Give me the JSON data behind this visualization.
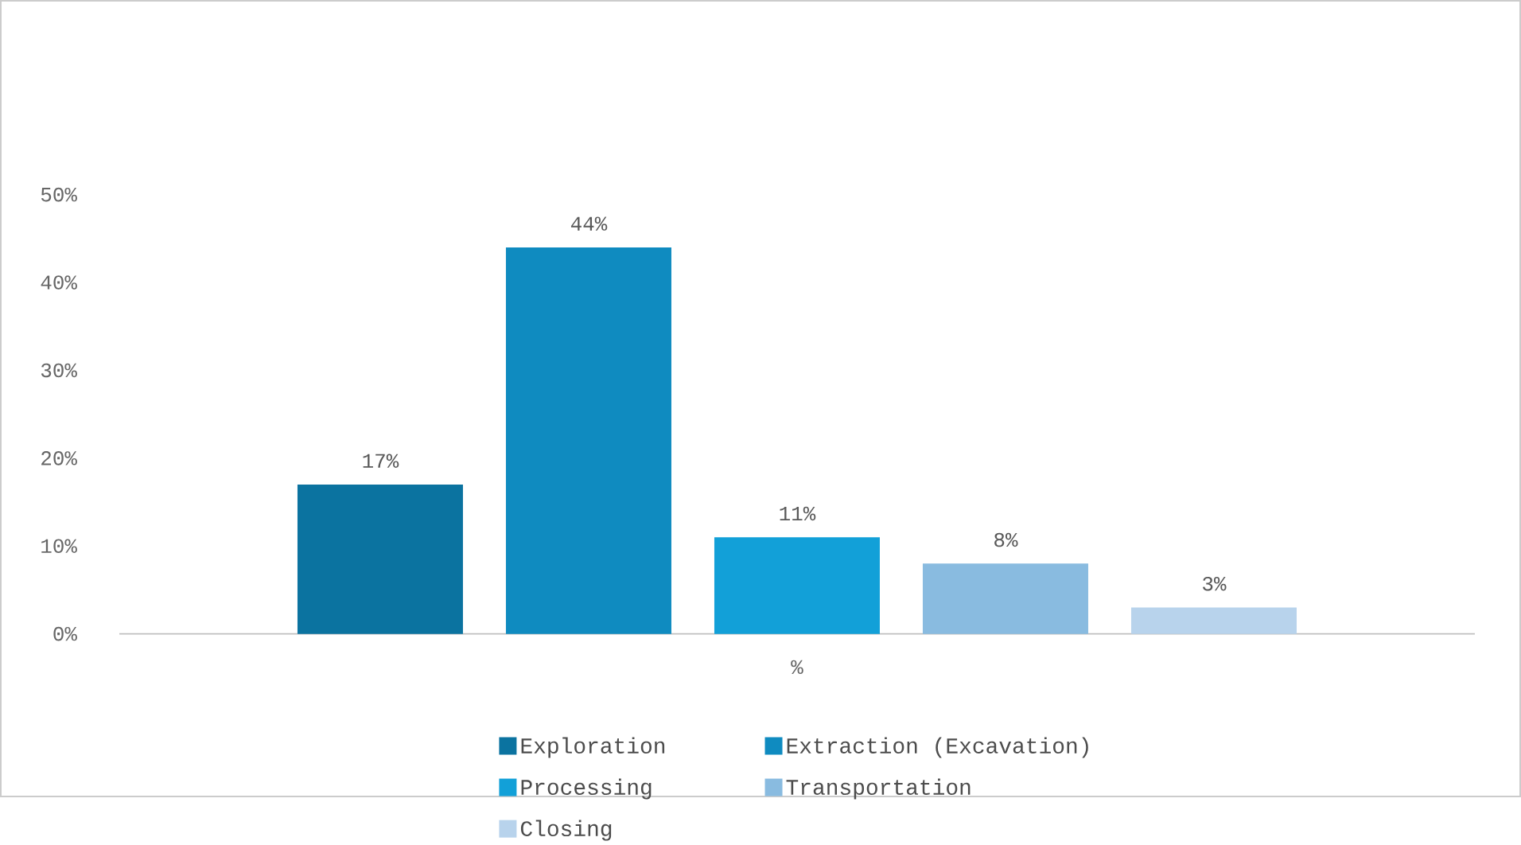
{
  "chart_data": {
    "type": "bar",
    "categories": [
      "%"
    ],
    "series": [
      {
        "name": "Exploration",
        "color": "#0b73a0",
        "values": [
          17
        ],
        "value_labels": [
          "17%"
        ]
      },
      {
        "name": "Extraction (Excavation)",
        "color": "#0f8bc0",
        "values": [
          44
        ],
        "value_labels": [
          "44%"
        ]
      },
      {
        "name": "Processing",
        "color": "#12a0d8",
        "values": [
          11
        ],
        "value_labels": [
          "11%"
        ]
      },
      {
        "name": "Transportation",
        "color": "#89bbe0",
        "values": [
          8
        ],
        "value_labels": [
          "8%"
        ]
      },
      {
        "name": "Closing",
        "color": "#b8d3ec",
        "values": [
          3
        ],
        "value_labels": [
          "3%"
        ]
      }
    ],
    "ylim": [
      0,
      50
    ],
    "yticks": [
      {
        "value": 0,
        "label": "0%"
      },
      {
        "value": 10,
        "label": "10%"
      },
      {
        "value": 20,
        "label": "20%"
      },
      {
        "value": 30,
        "label": "30%"
      },
      {
        "value": 40,
        "label": "40%"
      },
      {
        "value": 50,
        "label": "50%"
      }
    ],
    "grid": false,
    "legend": "bottom"
  }
}
